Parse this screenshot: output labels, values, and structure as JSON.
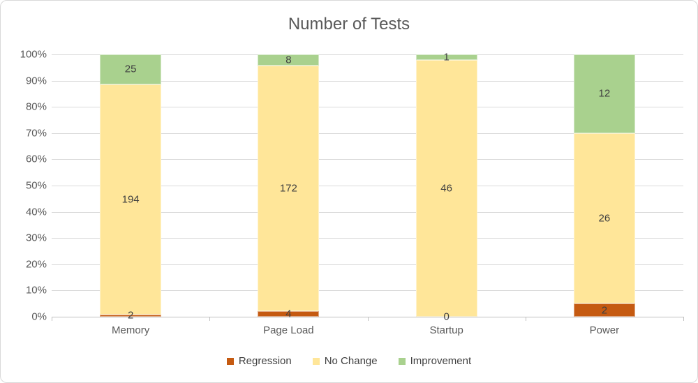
{
  "chart_data": {
    "type": "bar",
    "stacked": "percent",
    "title": "Number of Tests",
    "categories": [
      "Memory",
      "Page Load",
      "Startup",
      "Power"
    ],
    "series": [
      {
        "name": "Regression",
        "color": "#C55A11",
        "values": [
          2,
          4,
          0,
          2
        ]
      },
      {
        "name": "No Change",
        "color": "#FFE699",
        "values": [
          194,
          172,
          46,
          26
        ]
      },
      {
        "name": "Improvement",
        "color": "#A9D18E",
        "values": [
          25,
          8,
          1,
          12
        ]
      }
    ],
    "y_axis": {
      "ticks": [
        "0%",
        "10%",
        "20%",
        "30%",
        "40%",
        "50%",
        "60%",
        "70%",
        "80%",
        "90%",
        "100%"
      ],
      "range": [
        0,
        1
      ]
    },
    "data_labels": true,
    "grid": true,
    "legend_position": "bottom",
    "theme": {
      "title_color": "#595959",
      "axis_text_color": "#595959",
      "data_label_color": "#404040",
      "gridline_color": "#D9D9D9",
      "axis_line_color": "#BFBFBF",
      "background": "#FFFFFF",
      "border_color": "#D9D9D9"
    }
  }
}
